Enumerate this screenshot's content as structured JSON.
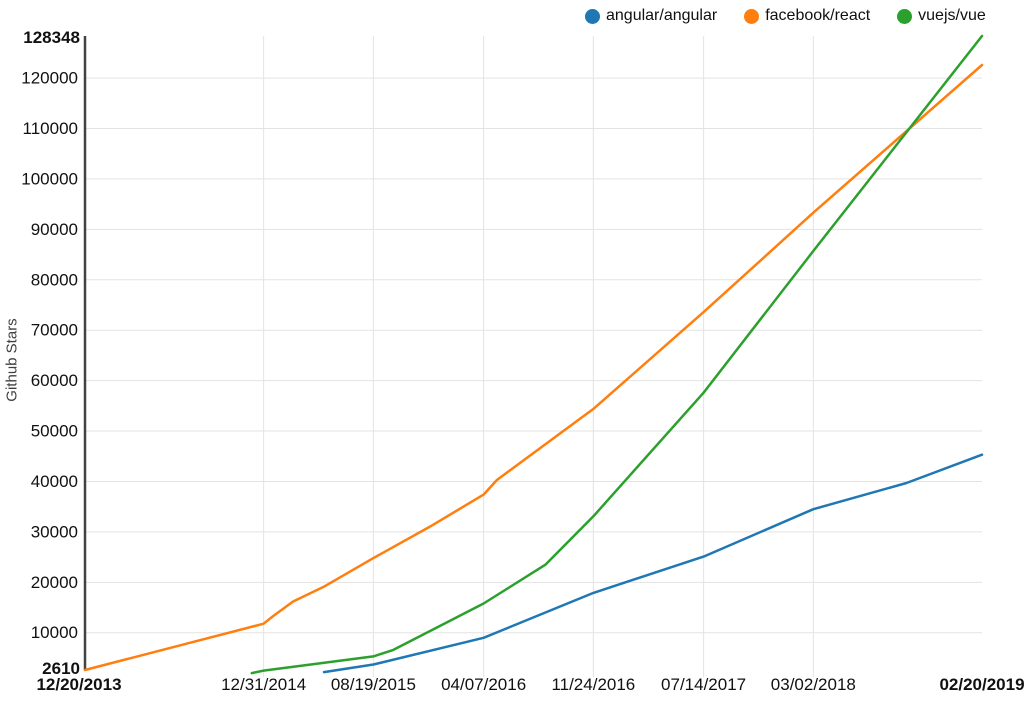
{
  "legend": {
    "items": [
      {
        "label": "angular/angular",
        "color": "#1f77b4"
      },
      {
        "label": "facebook/react",
        "color": "#ff7f0e"
      },
      {
        "label": "vuejs/vue",
        "color": "#2ca02c"
      }
    ]
  },
  "chart_data": {
    "type": "line",
    "title": "",
    "xlabel": "",
    "ylabel": "Github Stars",
    "grid": true,
    "legend_position": "top-right",
    "x_domain": [
      "12/20/2013",
      "02/20/2019"
    ],
    "y_domain": [
      2610,
      128348
    ],
    "y_domain_labels": [
      "2610",
      "128348"
    ],
    "x_domain_labels": [
      "12/20/2013",
      "02/20/2019"
    ],
    "y_ticks": [
      10000,
      20000,
      30000,
      40000,
      50000,
      60000,
      70000,
      80000,
      90000,
      100000,
      110000,
      120000
    ],
    "x_ticks": [
      "12/31/2014",
      "08/19/2015",
      "04/07/2016",
      "11/24/2016",
      "07/14/2017",
      "03/02/2018"
    ],
    "colors": {
      "axis": "#424242",
      "gridline": "#e3e3e3",
      "tick_text": "#111111"
    },
    "series": [
      {
        "name": "angular/angular",
        "color": "#1f77b4",
        "points": [
          [
            "05/07/2015",
            2200
          ],
          [
            "08/19/2015",
            3700
          ],
          [
            "04/07/2016",
            9000
          ],
          [
            "11/24/2016",
            17900
          ],
          [
            "07/14/2017",
            25100
          ],
          [
            "03/02/2018",
            34500
          ],
          [
            "09/14/2018",
            39700
          ],
          [
            "02/20/2019",
            45300
          ]
        ]
      },
      {
        "name": "facebook/react",
        "color": "#ff7f0e",
        "points": [
          [
            "12/20/2013",
            2610
          ],
          [
            "12/31/2014",
            11800
          ],
          [
            "01/20/2015",
            13300
          ],
          [
            "03/03/2015",
            16200
          ],
          [
            "05/06/2015",
            19100
          ],
          [
            "08/19/2015",
            24800
          ],
          [
            "12/15/2015",
            31000
          ],
          [
            "04/07/2016",
            37400
          ],
          [
            "05/05/2016",
            40300
          ],
          [
            "11/24/2016",
            54400
          ],
          [
            "07/14/2017",
            73600
          ],
          [
            "03/02/2018",
            93300
          ],
          [
            "02/20/2019",
            122600
          ]
        ]
      },
      {
        "name": "vuejs/vue",
        "color": "#2ca02c",
        "points": [
          [
            "12/06/2014",
            2000
          ],
          [
            "12/31/2014",
            2500
          ],
          [
            "08/19/2015",
            5300
          ],
          [
            "09/30/2015",
            6600
          ],
          [
            "04/07/2016",
            15800
          ],
          [
            "08/15/2016",
            23500
          ],
          [
            "11/24/2016",
            33100
          ],
          [
            "07/14/2017",
            57600
          ],
          [
            "03/02/2018",
            85700
          ],
          [
            "02/20/2019",
            128348
          ]
        ]
      }
    ]
  }
}
